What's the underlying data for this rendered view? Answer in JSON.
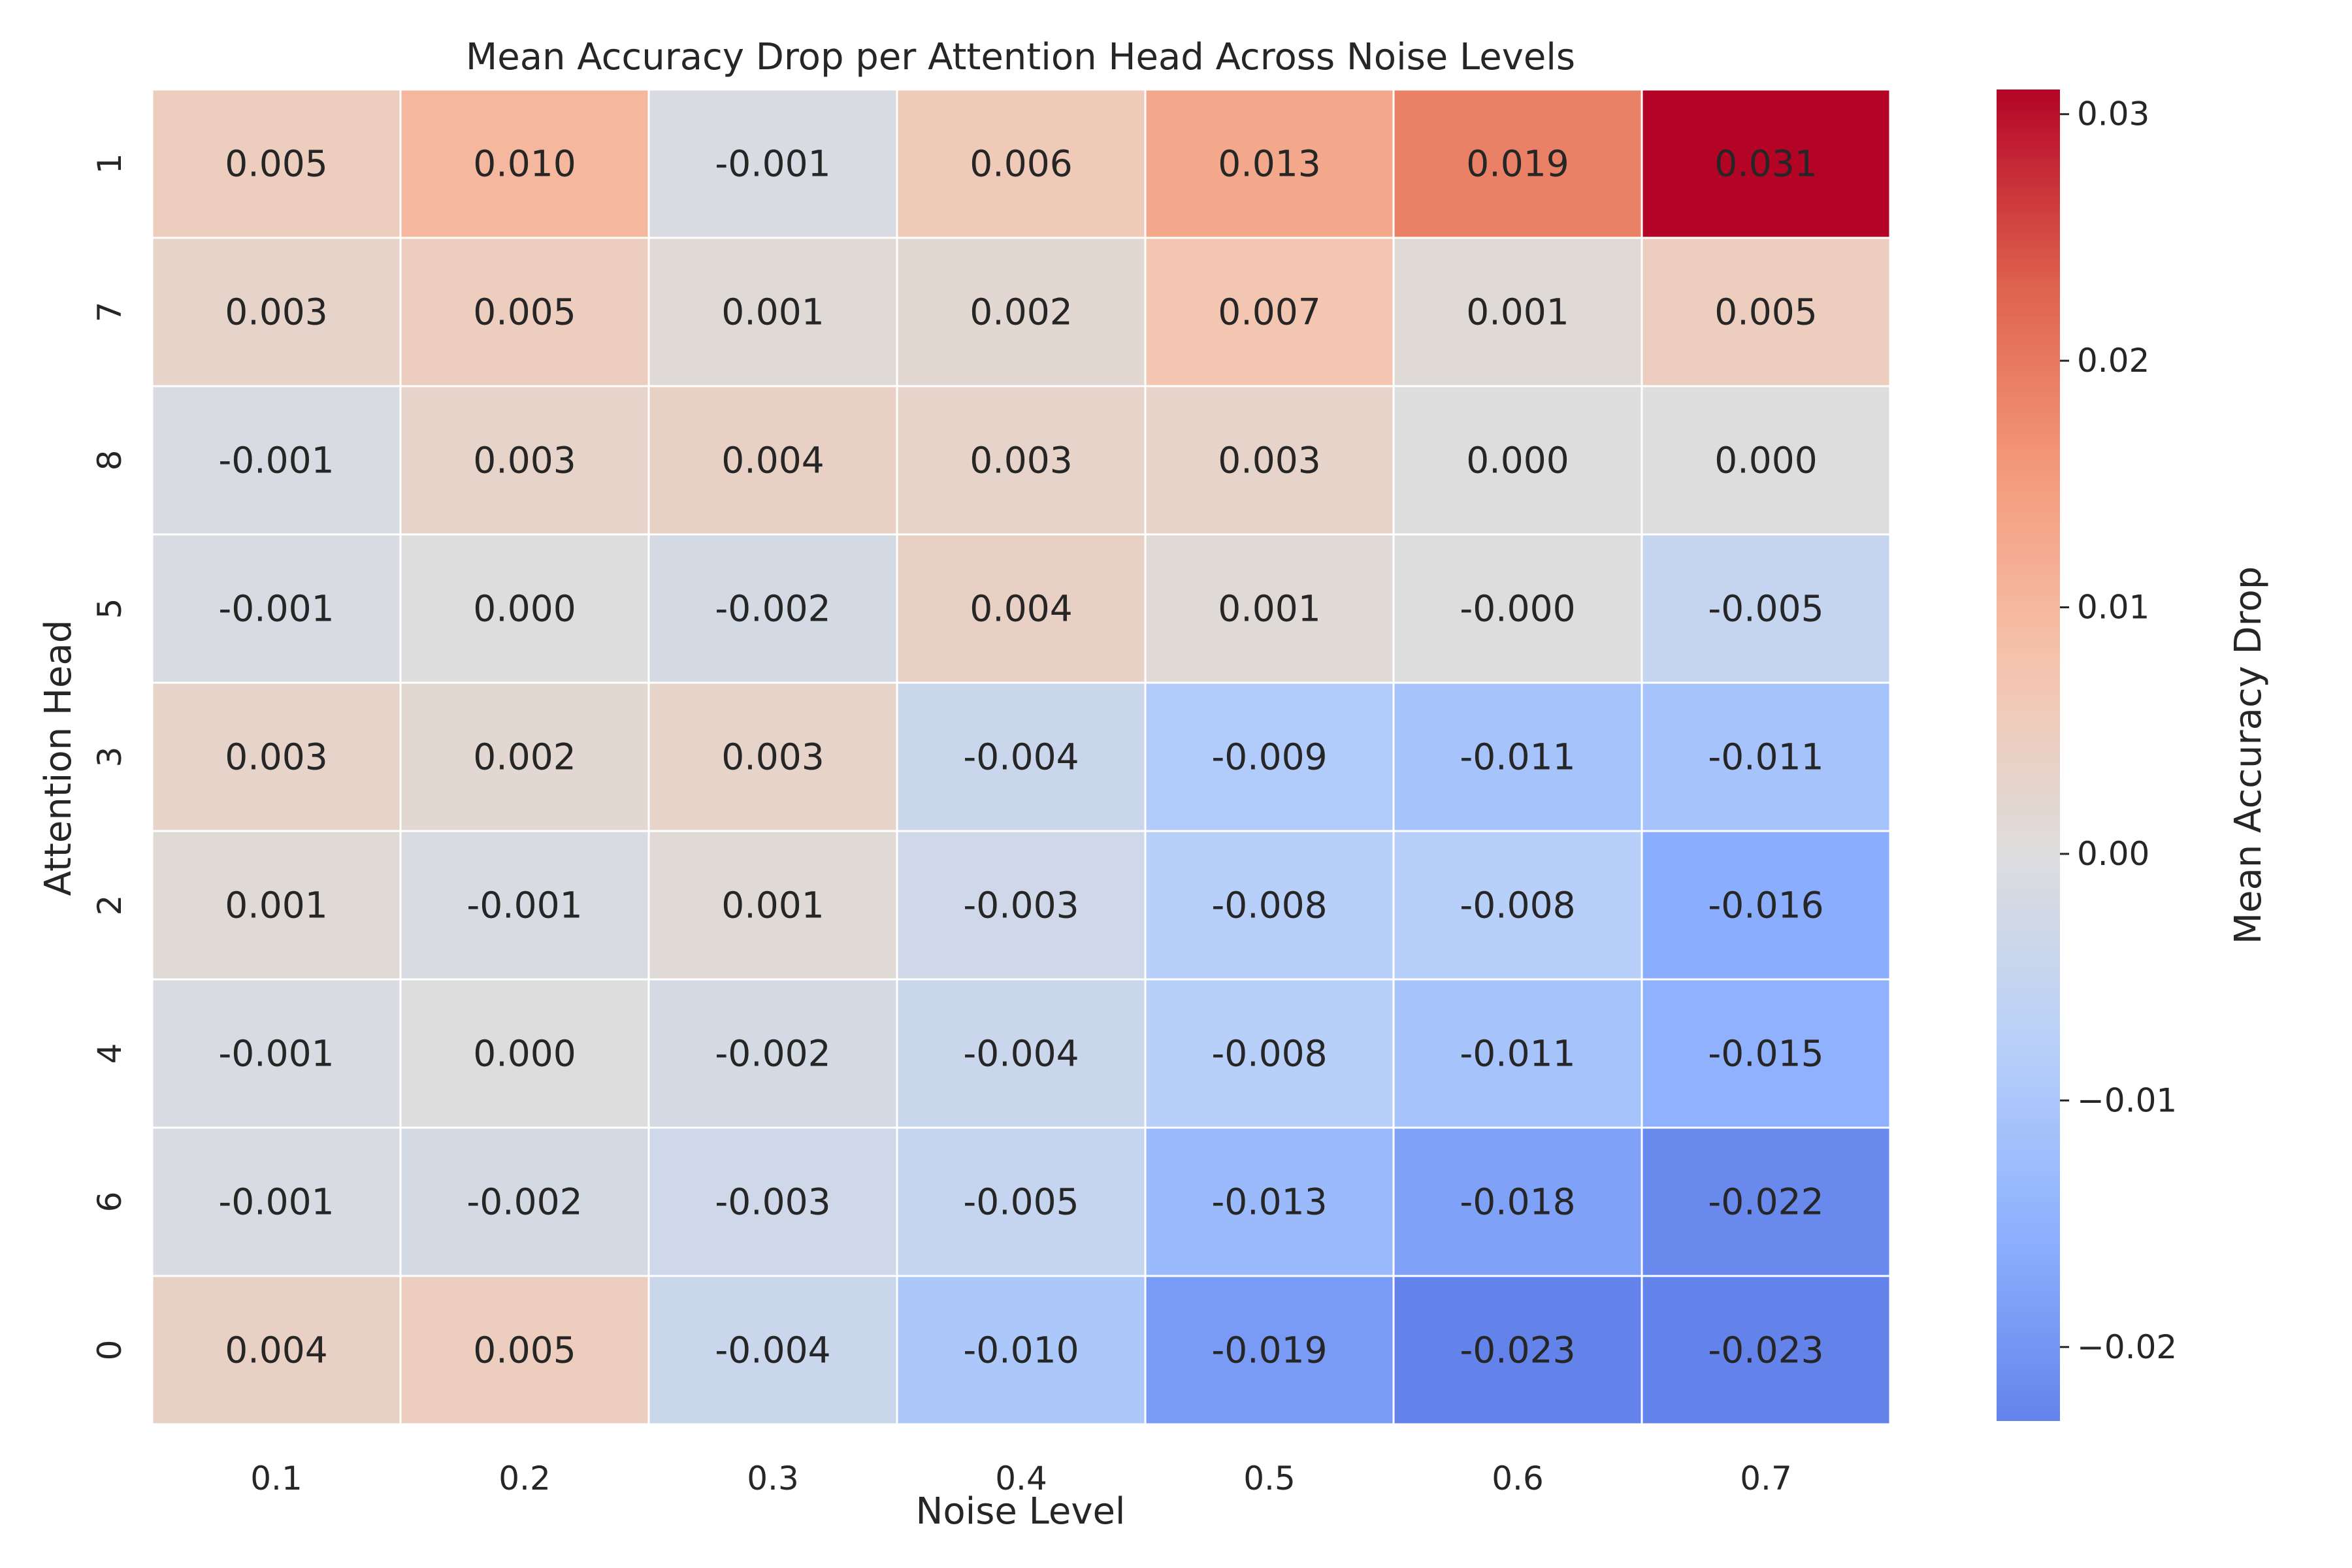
{
  "chart_data": {
    "type": "heatmap",
    "title": "Mean Accuracy Drop per Attention Head Across Noise Levels",
    "xlabel": "Noise Level",
    "ylabel": "Attention Head",
    "x_categories": [
      "0.1",
      "0.2",
      "0.3",
      "0.4",
      "0.5",
      "0.6",
      "0.7"
    ],
    "y_categories": [
      "1",
      "7",
      "8",
      "5",
      "3",
      "2",
      "4",
      "6",
      "0"
    ],
    "values": [
      [
        0.005,
        0.01,
        -0.001,
        0.006,
        0.013,
        0.019,
        0.031
      ],
      [
        0.003,
        0.005,
        0.001,
        0.002,
        0.007,
        0.001,
        0.005
      ],
      [
        -0.001,
        0.003,
        0.004,
        0.003,
        0.003,
        0.0,
        0.0
      ],
      [
        -0.001,
        0.0,
        -0.002,
        0.004,
        0.001,
        -0.0,
        -0.005
      ],
      [
        0.003,
        0.002,
        0.003,
        -0.004,
        -0.009,
        -0.011,
        -0.011
      ],
      [
        0.001,
        -0.001,
        0.001,
        -0.003,
        -0.008,
        -0.008,
        -0.016
      ],
      [
        -0.001,
        0.0,
        -0.002,
        -0.004,
        -0.008,
        -0.011,
        -0.015
      ],
      [
        -0.001,
        -0.002,
        -0.003,
        -0.005,
        -0.013,
        -0.018,
        -0.022
      ],
      [
        0.004,
        0.005,
        -0.004,
        -0.01,
        -0.019,
        -0.023,
        -0.023
      ]
    ],
    "cell_labels": [
      [
        "0.005",
        "0.010",
        "-0.001",
        "0.006",
        "0.013",
        "0.019",
        "0.031"
      ],
      [
        "0.003",
        "0.005",
        "0.001",
        "0.002",
        "0.007",
        "0.001",
        "0.005"
      ],
      [
        "-0.001",
        "0.003",
        "0.004",
        "0.003",
        "0.003",
        "0.000",
        "0.000"
      ],
      [
        "-0.001",
        "0.000",
        "-0.002",
        "0.004",
        "0.001",
        "-0.000",
        "-0.005"
      ],
      [
        "0.003",
        "0.002",
        "0.003",
        "-0.004",
        "-0.009",
        "-0.011",
        "-0.011"
      ],
      [
        "0.001",
        "-0.001",
        "0.001",
        "-0.003",
        "-0.008",
        "-0.008",
        "-0.016"
      ],
      [
        "-0.001",
        "0.000",
        "-0.002",
        "-0.004",
        "-0.008",
        "-0.011",
        "-0.015"
      ],
      [
        "-0.001",
        "-0.002",
        "-0.003",
        "-0.005",
        "-0.013",
        "-0.018",
        "-0.022"
      ],
      [
        "0.004",
        "0.005",
        "-0.004",
        "-0.010",
        "-0.019",
        "-0.023",
        "-0.023"
      ]
    ],
    "colormap": "coolwarm",
    "center": 0,
    "vmin": -0.023,
    "vmax": 0.031,
    "colorbar": {
      "label": "Mean Accuracy Drop",
      "ticks": [
        -0.02,
        -0.01,
        0.0,
        0.01,
        0.02,
        0.03
      ],
      "tick_labels": [
        "−0.02",
        "−0.01",
        "0.00",
        "0.01",
        "0.02",
        "0.03"
      ]
    }
  },
  "colors": {
    "text_dark": "#262626",
    "text_light": "#ffffff",
    "cell_border": "#ffffff",
    "cool_end": "#3b4cc0",
    "neutral": "#dddddd",
    "warm_end": "#b40426"
  }
}
